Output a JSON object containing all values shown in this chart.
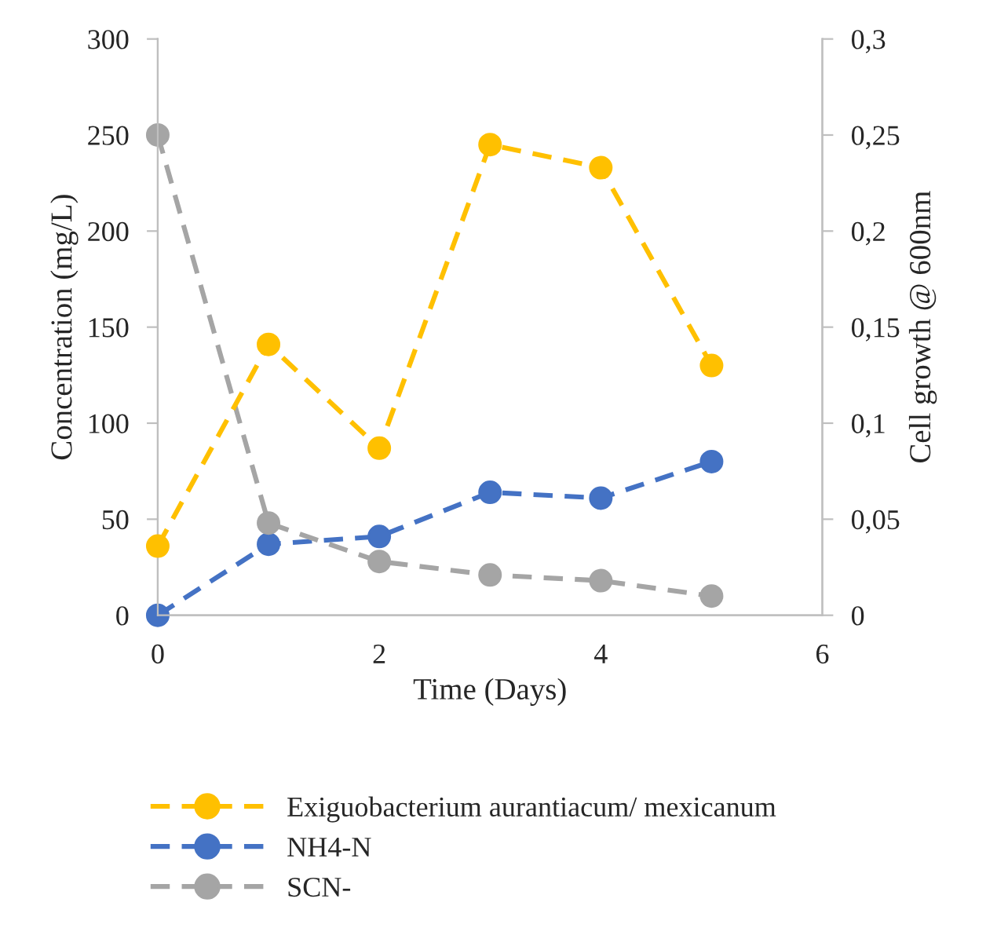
{
  "chart_data": {
    "type": "line",
    "xlabel": "Time (Days)",
    "ylabel": "Concentration (mg/L)",
    "y2label": "Cell growth @ 600nm",
    "x": [
      0,
      1,
      2,
      3,
      4,
      5
    ],
    "xlim": [
      0,
      6
    ],
    "xticks": [
      0,
      2,
      4,
      6
    ],
    "ylim": [
      0,
      300
    ],
    "yticks": [
      0,
      50,
      100,
      150,
      200,
      250,
      300
    ],
    "y2lim": [
      0,
      0.3
    ],
    "y2ticks": [
      {
        "value": 0,
        "label": "0"
      },
      {
        "value": 0.05,
        "label": "0,05"
      },
      {
        "value": 0.1,
        "label": "0,1"
      },
      {
        "value": 0.15,
        "label": "0,15"
      },
      {
        "value": 0.2,
        "label": "0,2"
      },
      {
        "value": 0.25,
        "label": "0,25"
      },
      {
        "value": 0.3,
        "label": "0,3"
      }
    ],
    "marker": "circle",
    "line_style": "dashed",
    "grid": false,
    "legend": "bottom",
    "series": [
      {
        "name": "Exiguobacterium aurantiacum/ mexicanum",
        "color": "#ffc000",
        "axis": "y2",
        "values": [
          0.036,
          0.141,
          0.087,
          0.245,
          0.233,
          0.13
        ]
      },
      {
        "name": "NH4-N",
        "color": "#4472c4",
        "values": [
          0,
          37,
          41,
          64,
          61,
          80
        ]
      },
      {
        "name": "SCN-",
        "color": "#a5a5a5",
        "values": [
          250,
          48,
          28,
          21,
          18,
          10
        ]
      }
    ]
  }
}
